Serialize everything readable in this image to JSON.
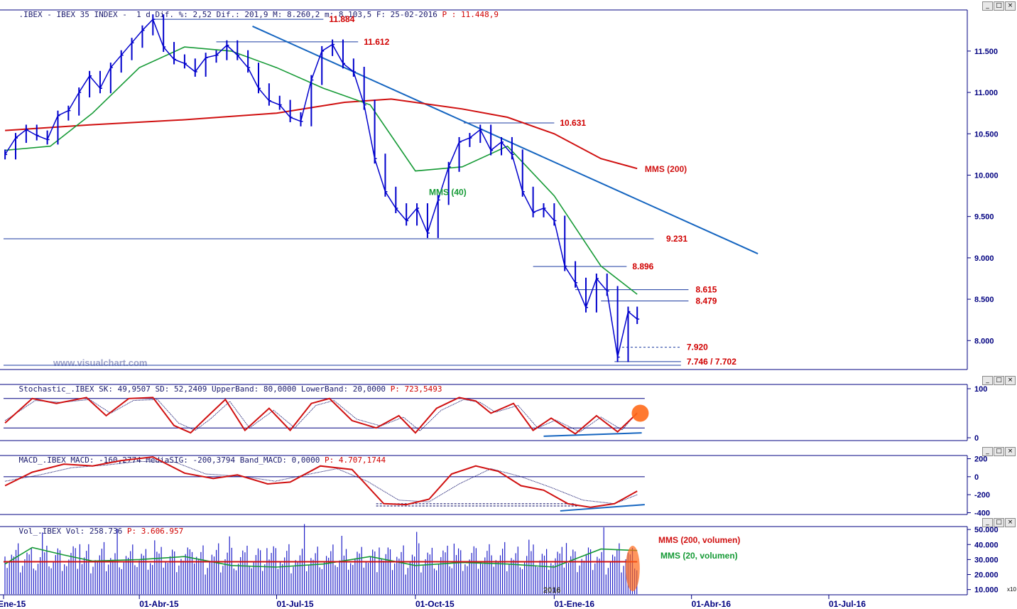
{
  "headers": {
    "price": {
      "text": ".IBEX - IBEX 35 INDEX -  1 d Dif. %: 2,52 Dif.: 201,9 M: 8.260,2 m: 8.103,5 F: 25-02-2016 ",
      "p": "P : 11.448,9"
    },
    "stoch": {
      "text": "Stochastic_.IBEX SK: 49,9507 SD: 52,2409 UpperBand: 80,0000 LowerBand: 20,0000 ",
      "p": "P: 723,5493"
    },
    "macd": {
      "text": "MACD_.IBEX MACD: -160,2774 MediaSIG: -200,3794 Band_MACD: 0,0000 ",
      "p": "P: 4.707,1744"
    },
    "vol": {
      "text": "Vol_.IBEX Vol: 258.736 ",
      "p": "P: 3.606.957"
    }
  },
  "watermark": "www.visualchart.com",
  "window_buttons": {
    "minimize": "_",
    "maximize": "□",
    "close": "×"
  },
  "x_axis_labels": [
    "Ene-15",
    "01-Abr-15",
    "01-Jul-15",
    "01-Oct-15",
    "01-Ene-16",
    "01-Abr-16",
    "01-Jul-16"
  ],
  "year_marker": "2016",
  "volume_axis_unit": "x10",
  "colors": {
    "price": "#0000cc",
    "mms200": "#d01010",
    "mms40": "#159a35",
    "trendline": "#1565c0",
    "level_line": "#1a3aa0",
    "annotation": "#d00000",
    "highlight": "#ff6a1a",
    "grid": "#000080"
  },
  "chart_data": [
    {
      "type": "line",
      "panel": "price",
      "title": "IBEX 35 INDEX, 1 d",
      "y_ticks": [
        "11.500",
        "11.000",
        "10.500",
        "10.000",
        "9.500",
        "9.000",
        "8.500",
        "8.000"
      ],
      "y_tick_values": [
        11500,
        11000,
        10500,
        10000,
        9500,
        9000,
        8500,
        8000
      ],
      "ylim": [
        7650,
        11980
      ],
      "annotations": [
        {
          "text": "11.884",
          "value": 11884
        },
        {
          "text": "11.612",
          "value": 11612
        },
        {
          "text": "10.631",
          "value": 10631
        },
        {
          "text": "9.231",
          "value": 9231
        },
        {
          "text": "8.896",
          "value": 8896
        },
        {
          "text": "8.615",
          "value": 8615
        },
        {
          "text": "8.479",
          "value": 8479
        },
        {
          "text": "7.920",
          "value": 7920
        },
        {
          "text": "7.746 / 7.702",
          "value": 7746
        }
      ],
      "series_labels": {
        "mms200": "MMS (200)",
        "mms40": "MMS (40)"
      },
      "close_points": [
        [
          "2015-01-02",
          10250
        ],
        [
          "2015-01-09",
          10450
        ],
        [
          "2015-01-16",
          10550
        ],
        [
          "2015-01-23",
          10480
        ],
        [
          "2015-01-30",
          10430
        ],
        [
          "2015-02-06",
          10720
        ],
        [
          "2015-02-13",
          10780
        ],
        [
          "2015-02-20",
          11000
        ],
        [
          "2015-02-27",
          11200
        ],
        [
          "2015-03-06",
          11050
        ],
        [
          "2015-03-13",
          11300
        ],
        [
          "2015-03-20",
          11450
        ],
        [
          "2015-03-27",
          11600
        ],
        [
          "2015-04-03",
          11750
        ],
        [
          "2015-04-10",
          11884
        ],
        [
          "2015-04-17",
          11550
        ],
        [
          "2015-04-24",
          11400
        ],
        [
          "2015-05-01",
          11350
        ],
        [
          "2015-05-08",
          11250
        ],
        [
          "2015-05-15",
          11420
        ],
        [
          "2015-05-22",
          11450
        ],
        [
          "2015-05-29",
          11570
        ],
        [
          "2015-06-05",
          11450
        ],
        [
          "2015-06-12",
          11300
        ],
        [
          "2015-06-19",
          11050
        ],
        [
          "2015-06-26",
          10900
        ],
        [
          "2015-07-03",
          10850
        ],
        [
          "2015-07-10",
          10700
        ],
        [
          "2015-07-17",
          10650
        ],
        [
          "2015-07-24",
          11150
        ],
        [
          "2015-07-31",
          11500
        ],
        [
          "2015-08-07",
          11580
        ],
        [
          "2015-08-14",
          11350
        ],
        [
          "2015-08-21",
          11250
        ],
        [
          "2015-08-28",
          10850
        ],
        [
          "2015-09-04",
          10200
        ],
        [
          "2015-09-11",
          9800
        ],
        [
          "2015-09-18",
          9600
        ],
        [
          "2015-09-25",
          9450
        ],
        [
          "2015-10-02",
          9600
        ],
        [
          "2015-10-09",
          9300
        ],
        [
          "2015-10-16",
          9700
        ],
        [
          "2015-10-23",
          10100
        ],
        [
          "2015-10-30",
          10400
        ],
        [
          "2015-11-06",
          10450
        ],
        [
          "2015-11-13",
          10550
        ],
        [
          "2015-11-20",
          10300
        ],
        [
          "2015-11-27",
          10400
        ],
        [
          "2015-12-04",
          10250
        ],
        [
          "2015-12-11",
          9800
        ],
        [
          "2015-12-18",
          9550
        ],
        [
          "2015-12-25",
          9600
        ],
        [
          "2016-01-01",
          9450
        ],
        [
          "2016-01-08",
          8900
        ],
        [
          "2016-01-15",
          8700
        ],
        [
          "2016-01-22",
          8400
        ],
        [
          "2016-01-29",
          8750
        ],
        [
          "2016-02-05",
          8600
        ],
        [
          "2016-02-12",
          7800
        ],
        [
          "2016-02-19",
          8350
        ],
        [
          "2016-02-25",
          8260
        ]
      ],
      "mms40_points": [
        [
          "2015-01-02",
          10300
        ],
        [
          "2015-02-01",
          10350
        ],
        [
          "2015-03-01",
          10750
        ],
        [
          "2015-04-01",
          11300
        ],
        [
          "2015-05-01",
          11550
        ],
        [
          "2015-06-01",
          11500
        ],
        [
          "2015-07-01",
          11300
        ],
        [
          "2015-08-01",
          11050
        ],
        [
          "2015-09-01",
          10850
        ],
        [
          "2015-10-01",
          10050
        ],
        [
          "2015-11-01",
          10100
        ],
        [
          "2015-12-01",
          10350
        ],
        [
          "2016-01-01",
          9750
        ],
        [
          "2016-02-01",
          8900
        ],
        [
          "2016-02-25",
          8560
        ]
      ],
      "mms200_points": [
        [
          "2015-01-02",
          10540
        ],
        [
          "2015-03-01",
          10610
        ],
        [
          "2015-05-01",
          10670
        ],
        [
          "2015-07-01",
          10750
        ],
        [
          "2015-08-15",
          10880
        ],
        [
          "2015-09-15",
          10920
        ],
        [
          "2015-11-01",
          10800
        ],
        [
          "2015-12-01",
          10700
        ],
        [
          "2016-01-01",
          10500
        ],
        [
          "2016-02-01",
          10200
        ],
        [
          "2016-02-25",
          10080
        ]
      ],
      "trendline": [
        [
          "2015-06-15",
          11800
        ],
        [
          "2016-05-15",
          9050
        ]
      ],
      "level_lines": [
        {
          "value": 11884,
          "from": "2015-04-10",
          "to": "2015-08-01"
        },
        {
          "value": 11612,
          "from": "2015-05-22",
          "to": "2015-08-24"
        },
        {
          "value": 10631,
          "from": "2015-11-02",
          "to": "2016-01-01"
        },
        {
          "value": 9231,
          "from": "2015-01-01",
          "to": "2016-03-07"
        },
        {
          "value": 8896,
          "from": "2015-12-18",
          "to": "2016-02-18"
        },
        {
          "value": 8615,
          "from": "2016-01-15",
          "to": "2016-03-30"
        },
        {
          "value": 8479,
          "from": "2016-02-01",
          "to": "2016-03-30"
        },
        {
          "value": 7920,
          "from": "2016-02-15",
          "to": "2016-03-25",
          "dashed": true
        },
        {
          "value": 7746,
          "from": "2016-02-10",
          "to": "2016-03-25"
        },
        {
          "value": 7702,
          "from": "2015-01-01",
          "to": "2016-03-25"
        }
      ]
    },
    {
      "type": "line",
      "panel": "stochastic",
      "y_ticks": [
        "100",
        "0"
      ],
      "ylim": [
        0,
        100
      ],
      "bands": [
        80,
        20
      ],
      "sk_points": [
        [
          "2015-01-02",
          30
        ],
        [
          "2015-01-20",
          80
        ],
        [
          "2015-02-05",
          70
        ],
        [
          "2015-02-25",
          82
        ],
        [
          "2015-03-10",
          45
        ],
        [
          "2015-03-25",
          80
        ],
        [
          "2015-04-10",
          82
        ],
        [
          "2015-04-24",
          25
        ],
        [
          "2015-05-05",
          10
        ],
        [
          "2015-05-15",
          40
        ],
        [
          "2015-05-28",
          78
        ],
        [
          "2015-06-10",
          15
        ],
        [
          "2015-06-26",
          60
        ],
        [
          "2015-07-10",
          15
        ],
        [
          "2015-07-24",
          70
        ],
        [
          "2015-08-05",
          80
        ],
        [
          "2015-08-20",
          35
        ],
        [
          "2015-09-05",
          20
        ],
        [
          "2015-09-20",
          45
        ],
        [
          "2015-10-01",
          10
        ],
        [
          "2015-10-15",
          60
        ],
        [
          "2015-10-30",
          82
        ],
        [
          "2015-11-10",
          75
        ],
        [
          "2015-11-20",
          50
        ],
        [
          "2015-12-05",
          70
        ],
        [
          "2015-12-18",
          15
        ],
        [
          "2015-12-30",
          40
        ],
        [
          "2016-01-15",
          8
        ],
        [
          "2016-01-29",
          45
        ],
        [
          "2016-02-12",
          12
        ],
        [
          "2016-02-25",
          50
        ]
      ],
      "sd_points": [
        [
          "2015-01-02",
          35
        ],
        [
          "2015-01-22",
          76
        ],
        [
          "2015-02-08",
          72
        ],
        [
          "2015-02-27",
          78
        ],
        [
          "2015-03-13",
          50
        ],
        [
          "2015-03-28",
          76
        ],
        [
          "2015-04-13",
          78
        ],
        [
          "2015-04-27",
          30
        ],
        [
          "2015-05-08",
          15
        ],
        [
          "2015-05-18",
          38
        ],
        [
          "2015-05-31",
          74
        ],
        [
          "2015-06-13",
          20
        ],
        [
          "2015-06-29",
          56
        ],
        [
          "2015-07-13",
          20
        ],
        [
          "2015-07-27",
          66
        ],
        [
          "2015-08-08",
          76
        ],
        [
          "2015-08-23",
          38
        ],
        [
          "2015-09-08",
          24
        ],
        [
          "2015-09-23",
          42
        ],
        [
          "2015-10-04",
          14
        ],
        [
          "2015-10-18",
          56
        ],
        [
          "2015-11-02",
          78
        ],
        [
          "2015-11-13",
          72
        ],
        [
          "2015-11-23",
          52
        ],
        [
          "2015-12-08",
          66
        ],
        [
          "2015-12-21",
          20
        ],
        [
          "2016-01-02",
          36
        ],
        [
          "2016-01-18",
          12
        ],
        [
          "2016-02-01",
          42
        ],
        [
          "2016-02-15",
          16
        ],
        [
          "2016-02-25",
          52
        ]
      ],
      "divergence_line": [
        [
          "2015-12-25",
          3
        ],
        [
          "2016-02-28",
          10
        ]
      ]
    },
    {
      "type": "line",
      "panel": "macd",
      "y_ticks": [
        "200",
        "0",
        "-200",
        "-400"
      ],
      "ylim": [
        -420,
        220
      ],
      "zero_band": 0,
      "macd_points": [
        [
          "2015-01-02",
          -100
        ],
        [
          "2015-01-20",
          50
        ],
        [
          "2015-02-10",
          140
        ],
        [
          "2015-03-01",
          120
        ],
        [
          "2015-03-20",
          180
        ],
        [
          "2015-04-10",
          220
        ],
        [
          "2015-05-01",
          40
        ],
        [
          "2015-05-20",
          -20
        ],
        [
          "2015-06-05",
          20
        ],
        [
          "2015-06-25",
          -80
        ],
        [
          "2015-07-10",
          -60
        ],
        [
          "2015-07-30",
          120
        ],
        [
          "2015-08-20",
          80
        ],
        [
          "2015-09-10",
          -300
        ],
        [
          "2015-09-25",
          -310
        ],
        [
          "2015-10-10",
          -250
        ],
        [
          "2015-10-25",
          30
        ],
        [
          "2015-11-10",
          120
        ],
        [
          "2015-11-25",
          60
        ],
        [
          "2015-12-10",
          -100
        ],
        [
          "2015-12-25",
          -150
        ],
        [
          "2016-01-10",
          -300
        ],
        [
          "2016-01-25",
          -340
        ],
        [
          "2016-02-10",
          -300
        ],
        [
          "2016-02-25",
          -160
        ]
      ],
      "signal_points": [
        [
          "2015-01-02",
          -50
        ],
        [
          "2015-01-25",
          20
        ],
        [
          "2015-02-15",
          100
        ],
        [
          "2015-03-10",
          130
        ],
        [
          "2015-04-01",
          170
        ],
        [
          "2015-04-25",
          160
        ],
        [
          "2015-05-15",
          30
        ],
        [
          "2015-06-10",
          0
        ],
        [
          "2015-06-30",
          -50
        ],
        [
          "2015-07-20",
          20
        ],
        [
          "2015-08-10",
          90
        ],
        [
          "2015-08-30",
          -50
        ],
        [
          "2015-09-20",
          -260
        ],
        [
          "2015-10-10",
          -280
        ],
        [
          "2015-10-30",
          -80
        ],
        [
          "2015-11-20",
          90
        ],
        [
          "2015-12-10",
          0
        ],
        [
          "2015-12-30",
          -120
        ],
        [
          "2016-01-20",
          -260
        ],
        [
          "2016-02-10",
          -300
        ],
        [
          "2016-02-25",
          -200
        ]
      ],
      "divergence_line": [
        [
          "2016-01-05",
          -380
        ],
        [
          "2016-03-01",
          -310
        ]
      ],
      "dashed_levels": [
        {
          "value": -300,
          "from": "2015-09-05",
          "to": "2016-01-15"
        },
        {
          "value": -325,
          "from": "2015-09-05",
          "to": "2016-01-20"
        }
      ]
    },
    {
      "type": "bar",
      "panel": "volume",
      "y_ticks": [
        "50.000",
        "40.000",
        "30.000",
        "20.000",
        "10.000"
      ],
      "ylim": [
        7000,
        51000
      ],
      "series_labels": {
        "mms200": "MMS (200, volumen)",
        "mms20": "MMS (20, volumen)"
      },
      "mms200_level": 28500,
      "mms20_points": [
        [
          "2015-01-02",
          27000
        ],
        [
          "2015-01-20",
          38000
        ],
        [
          "2015-02-10",
          33000
        ],
        [
          "2015-03-01",
          29000
        ],
        [
          "2015-04-01",
          30000
        ],
        [
          "2015-05-01",
          32000
        ],
        [
          "2015-06-01",
          26000
        ],
        [
          "2015-07-01",
          25000
        ],
        [
          "2015-08-01",
          27000
        ],
        [
          "2015-09-01",
          32000
        ],
        [
          "2015-10-01",
          26000
        ],
        [
          "2015-11-01",
          28000
        ],
        [
          "2015-12-01",
          27000
        ],
        [
          "2016-01-01",
          25000
        ],
        [
          "2016-02-01",
          37000
        ],
        [
          "2016-02-25",
          36000
        ]
      ]
    }
  ]
}
